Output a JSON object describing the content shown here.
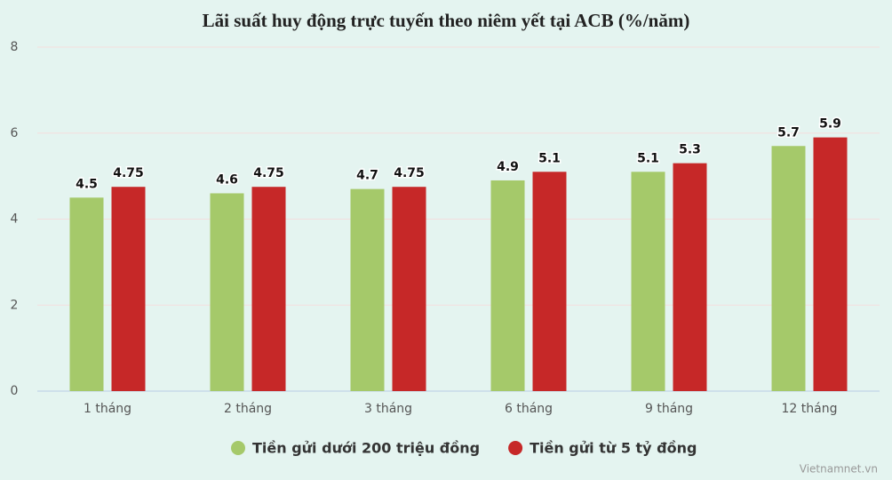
{
  "chart_data": {
    "type": "bar",
    "title": "Lãi suất huy động trực tuyến theo niêm yết tại ACB (%/năm)",
    "categories": [
      "1 tháng",
      "2 tháng",
      "3 tháng",
      "6 tháng",
      "9 tháng",
      "12 tháng"
    ],
    "series": [
      {
        "name": "Tiền gửi dưới 200 triệu đồng",
        "color": "#a5c96a",
        "values": [
          4.5,
          4.6,
          4.7,
          4.9,
          5.1,
          5.7
        ]
      },
      {
        "name": "Tiền gửi từ 5 tỷ đồng",
        "color": "#c62828",
        "values": [
          4.75,
          4.75,
          4.75,
          5.1,
          5.3,
          5.9
        ]
      }
    ],
    "ylim": [
      0,
      8
    ],
    "yticks": [
      0,
      2,
      4,
      6,
      8
    ],
    "grid": true,
    "source": "Vietnamnet.vn"
  }
}
